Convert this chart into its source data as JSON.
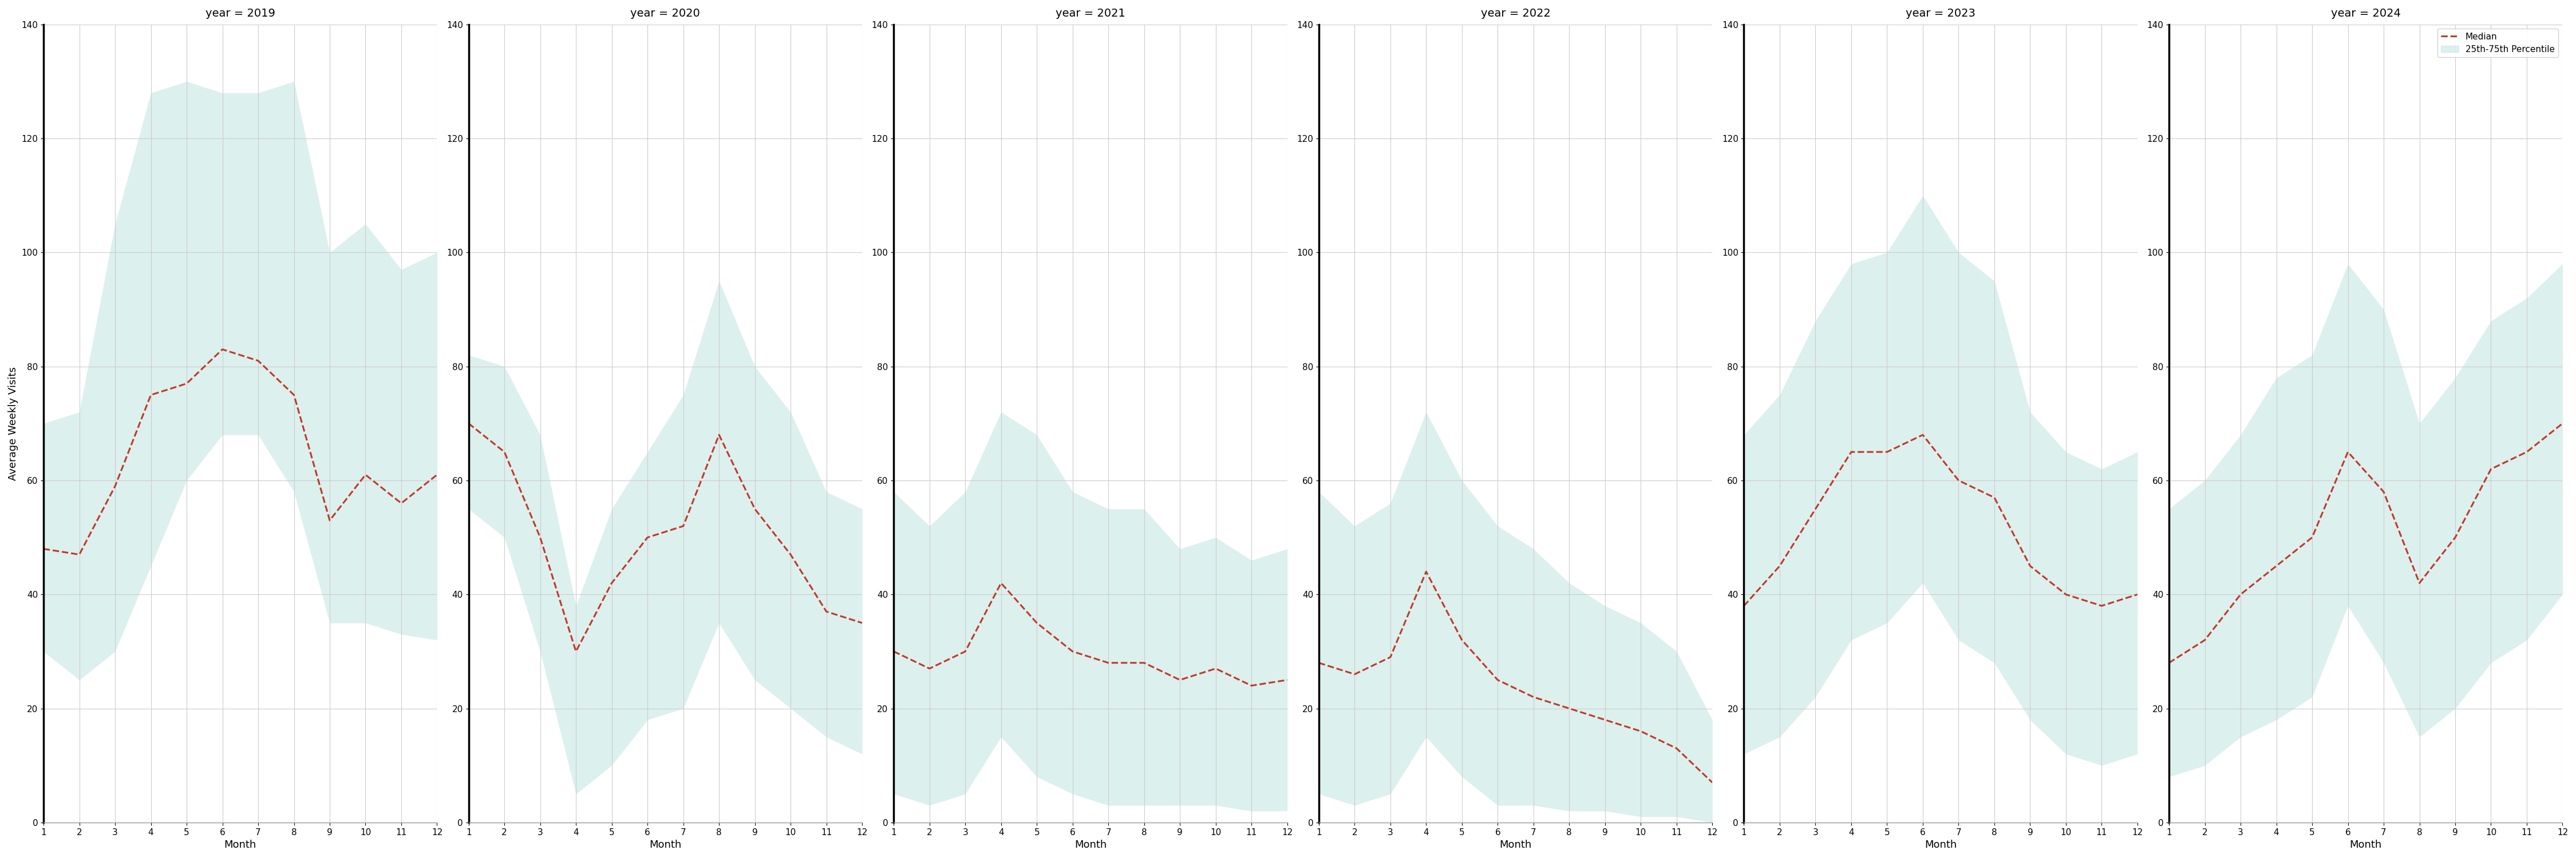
{
  "years": [
    2019,
    2020,
    2021,
    2022,
    2023,
    2024
  ],
  "months": [
    1,
    2,
    3,
    4,
    5,
    6,
    7,
    8,
    9,
    10,
    11,
    12
  ],
  "median": {
    "2019": [
      48,
      47,
      59,
      75,
      77,
      83,
      81,
      75,
      53,
      61,
      56,
      61
    ],
    "2020": [
      70,
      65,
      50,
      30,
      42,
      50,
      52,
      68,
      55,
      47,
      37,
      35
    ],
    "2021": [
      30,
      27,
      30,
      42,
      35,
      30,
      28,
      28,
      25,
      27,
      24,
      25
    ],
    "2022": [
      28,
      26,
      29,
      44,
      32,
      25,
      22,
      20,
      18,
      16,
      13,
      7
    ],
    "2023": [
      38,
      45,
      55,
      65,
      65,
      68,
      60,
      57,
      45,
      40,
      38,
      40
    ],
    "2024": [
      28,
      32,
      40,
      45,
      50,
      65,
      58,
      42,
      50,
      62,
      65,
      70
    ]
  },
  "q25": {
    "2019": [
      30,
      25,
      30,
      45,
      60,
      68,
      68,
      58,
      35,
      35,
      33,
      32
    ],
    "2020": [
      55,
      50,
      30,
      5,
      10,
      18,
      20,
      35,
      25,
      20,
      15,
      12
    ],
    "2021": [
      5,
      3,
      5,
      15,
      8,
      5,
      3,
      3,
      3,
      3,
      2,
      2
    ],
    "2022": [
      5,
      3,
      5,
      15,
      8,
      3,
      3,
      2,
      2,
      1,
      1,
      0
    ],
    "2023": [
      12,
      15,
      22,
      32,
      35,
      42,
      32,
      28,
      18,
      12,
      10,
      12
    ],
    "2024": [
      8,
      10,
      15,
      18,
      22,
      38,
      28,
      15,
      20,
      28,
      32,
      40
    ]
  },
  "q75": {
    "2019": [
      70,
      72,
      105,
      128,
      130,
      128,
      128,
      130,
      100,
      105,
      97,
      100
    ],
    "2020": [
      82,
      80,
      68,
      38,
      55,
      65,
      75,
      95,
      80,
      72,
      58,
      55
    ],
    "2021": [
      58,
      52,
      58,
      72,
      68,
      58,
      55,
      55,
      48,
      50,
      46,
      48
    ],
    "2022": [
      58,
      52,
      56,
      72,
      60,
      52,
      48,
      42,
      38,
      35,
      30,
      18
    ],
    "2023": [
      68,
      75,
      88,
      98,
      100,
      110,
      100,
      95,
      72,
      65,
      62,
      65
    ],
    "2024": [
      55,
      60,
      68,
      78,
      82,
      98,
      90,
      70,
      78,
      88,
      92,
      98
    ]
  },
  "fill_color": "#b2dfdb",
  "fill_alpha": 0.45,
  "line_color": "#c0392b",
  "line_style": "--",
  "line_width": 2.2,
  "ylabel": "Average Weekly Visits",
  "xlabel": "Month",
  "ylim": [
    0,
    140
  ],
  "yticks": [
    0,
    20,
    40,
    60,
    80,
    100,
    120,
    140
  ],
  "grid_color": "#cccccc",
  "legend_labels": [
    "Median",
    "25th-75th Percentile"
  ],
  "title_prefix": "year = "
}
